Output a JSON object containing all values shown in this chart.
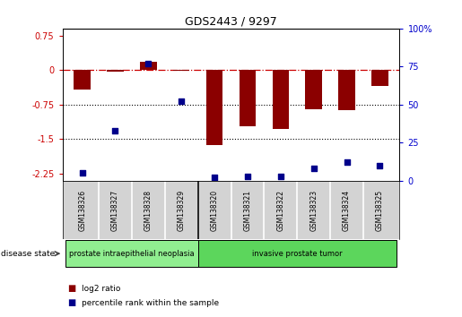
{
  "title": "GDS2443 / 9297",
  "samples": [
    "GSM138326",
    "GSM138327",
    "GSM138328",
    "GSM138329",
    "GSM138320",
    "GSM138321",
    "GSM138322",
    "GSM138323",
    "GSM138324",
    "GSM138325"
  ],
  "log2_ratio": [
    -0.42,
    -0.04,
    0.18,
    -0.01,
    -1.62,
    -1.22,
    -1.28,
    -0.85,
    -0.87,
    -0.35
  ],
  "percentile_rank": [
    5,
    33,
    77,
    52,
    2,
    3,
    3,
    8,
    12,
    10
  ],
  "disease_groups": [
    {
      "label": "prostate intraepithelial neoplasia",
      "start": 0,
      "end": 4,
      "color": "#90ee90"
    },
    {
      "label": "invasive prostate tumor",
      "start": 4,
      "end": 10,
      "color": "#5cd65c"
    }
  ],
  "bar_color": "#8B0000",
  "dot_color": "#00008B",
  "ylim_left": [
    -2.4,
    0.9
  ],
  "ylim_right": [
    0,
    100
  ],
  "yticks_left": [
    0.75,
    0,
    -0.75,
    -1.5,
    -2.25
  ],
  "yticks_right": [
    100,
    75,
    50,
    25,
    0
  ],
  "hline_zero_color": "#cc0000",
  "dotted_hlines": [
    -0.75,
    -1.5
  ],
  "legend_red_label": "log2 ratio",
  "legend_blue_label": "percentile rank within the sample",
  "disease_state_label": "disease state",
  "sample_box_color": "#d3d3d3",
  "bar_width": 0.5
}
